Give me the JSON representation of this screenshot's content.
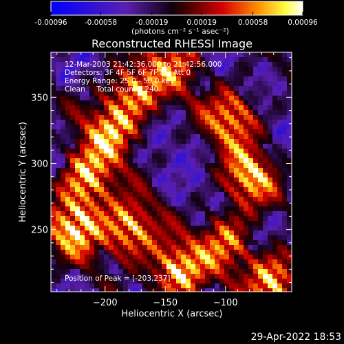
{
  "colorbar": {
    "ticks": [
      "-0.00096",
      "-0.00058",
      "-0.00019",
      "0.00019",
      "0.00058",
      "0.00096"
    ],
    "tick_values": [
      -0.00096,
      -0.00058,
      -0.00019,
      0.00019,
      0.00058,
      0.00096
    ],
    "units": "(photons cm⁻² s⁻¹ asec⁻²)",
    "range": [
      -0.00096,
      0.00096
    ]
  },
  "info": {
    "time": "12-Mar-2003 21:42:36.000 to 21:42:56.000",
    "detectors": "Detectors: 3F 4F 5F 6F 7F 8F, Att 0",
    "energy": "Energy Range: 25.0 - 50.0 keV",
    "method": "Clean     Total counts: 240.",
    "peak": "Position of Peak = [-203,237]"
  },
  "footer": {
    "timestamp": "29-Apr-2022 18:53"
  },
  "chart_data": {
    "type": "heatmap",
    "title": "Reconstructed RHESSI Image",
    "xlabel": "Heliocentric X (arcsec)",
    "ylabel": "Heliocentric Y (arcsec)",
    "xlim": [
      -245,
      -45
    ],
    "ylim": [
      203,
      384
    ],
    "x_ticks": [
      -200,
      -150,
      -100
    ],
    "y_ticks": [
      250,
      300,
      350
    ],
    "colormap": "rhessi-blue-purple-red-yellow-white",
    "grid": false,
    "features": [
      {
        "x": -215,
        "y": 290,
        "intensity": 0.85
      },
      {
        "x": -225,
        "y": 252,
        "intensity": 0.95
      },
      {
        "x": -180,
        "y": 250,
        "intensity": 0.9
      },
      {
        "x": -195,
        "y": 325,
        "intensity": 0.8
      },
      {
        "x": -175,
        "y": 355,
        "intensity": 0.75
      },
      {
        "x": -140,
        "y": 218,
        "intensity": 0.95
      },
      {
        "x": -95,
        "y": 335,
        "intensity": 0.8
      },
      {
        "x": -80,
        "y": 290,
        "intensity": 0.85
      },
      {
        "x": -100,
        "y": 240,
        "intensity": 0.7
      },
      {
        "x": -60,
        "y": 210,
        "intensity": 0.9
      },
      {
        "x": -140,
        "y": 375,
        "intensity": 0.6
      }
    ]
  }
}
